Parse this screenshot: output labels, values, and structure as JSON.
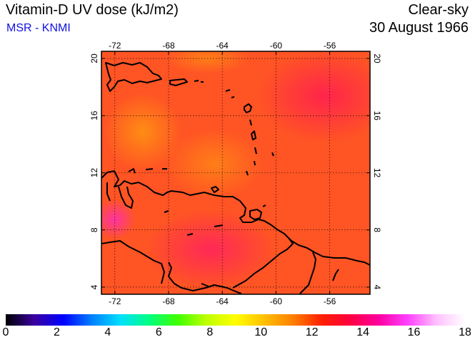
{
  "header": {
    "title": "Vitamin-D UV dose (kJ/m2)",
    "source": "MSR - KNMI",
    "condition": "Clear-sky",
    "date": "30 August 1966"
  },
  "map": {
    "lon_range": [
      -73,
      -53
    ],
    "lat_range": [
      3.5,
      20.5
    ],
    "lon_ticks": [
      -72,
      -68,
      -64,
      -60,
      -56
    ],
    "lat_ticks": [
      4,
      8,
      12,
      16,
      20
    ],
    "lon_tick_labels": [
      "-72",
      "-68",
      "-64",
      "-60",
      "-56"
    ],
    "lat_tick_labels": [
      "4",
      "8",
      "12",
      "16",
      "20"
    ],
    "gridlines": "dotted",
    "coastline_color": "#000000"
  },
  "colorbar": {
    "min": 0,
    "max": 18,
    "labels": [
      "0",
      "2",
      "4",
      "6",
      "8",
      "10",
      "12",
      "14",
      "16",
      "18"
    ],
    "colors": [
      "#000000",
      "#3a00a0",
      "#0000ff",
      "#0080ff",
      "#00e0ff",
      "#00ff80",
      "#40ff00",
      "#c0ff00",
      "#ffff00",
      "#ffc000",
      "#ff8000",
      "#ff2000",
      "#ff0040",
      "#ff00a0",
      "#ff40ff",
      "#ffc0ff",
      "#ffffff"
    ]
  }
}
